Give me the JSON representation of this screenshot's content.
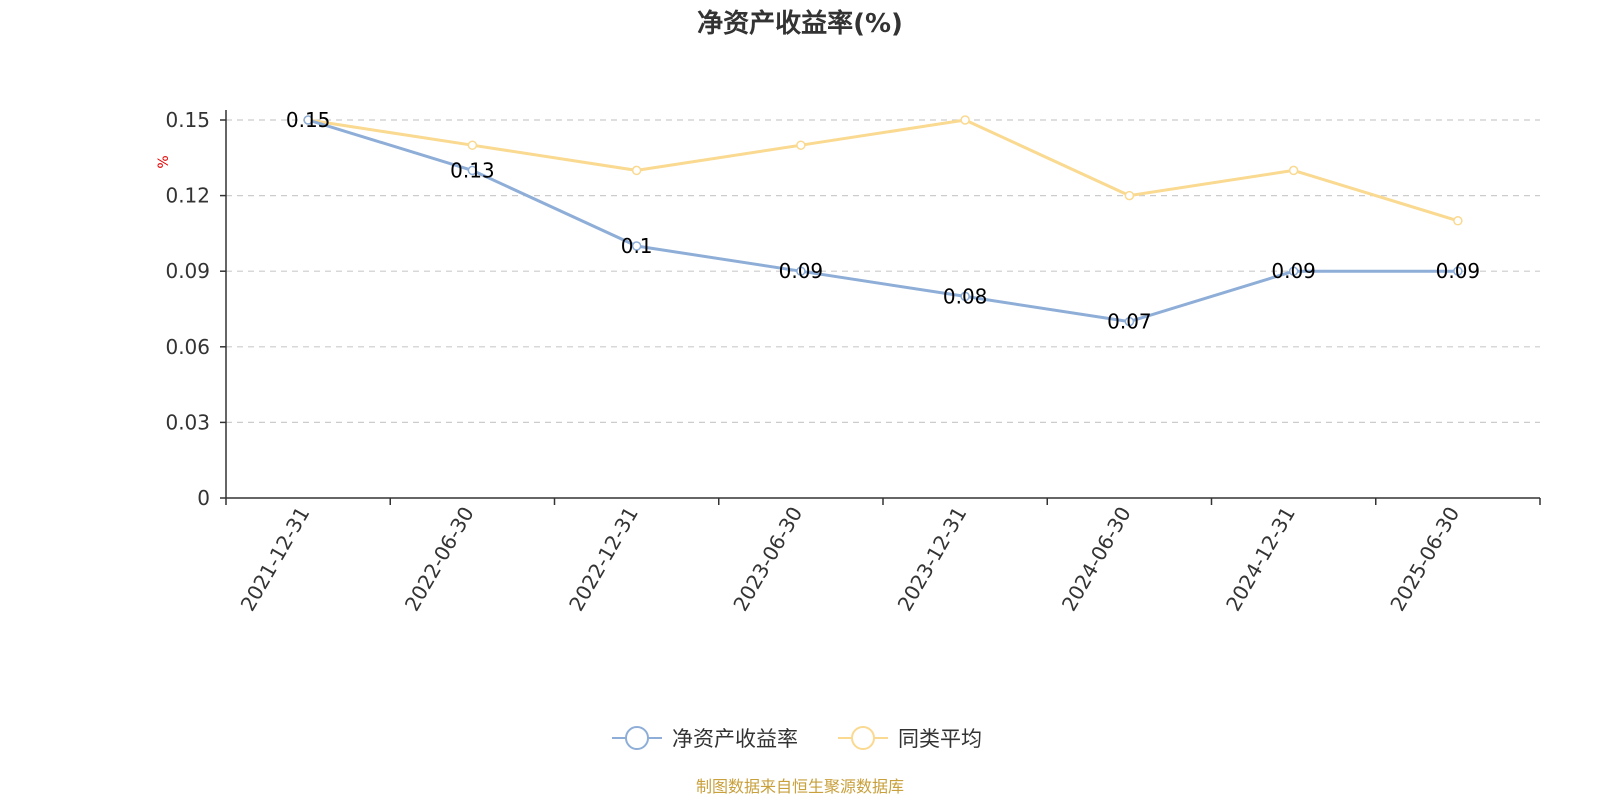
{
  "chart_data": {
    "type": "line",
    "title": "净资产收益率(%)",
    "ylabel": "%",
    "xlabel": "",
    "categories": [
      "2021-12-31",
      "2022-06-30",
      "2022-12-31",
      "2023-06-30",
      "2023-12-31",
      "2024-06-30",
      "2024-12-31",
      "2025-06-30"
    ],
    "series": [
      {
        "name": "净资产收益率",
        "color": "#8eaed8",
        "values": [
          0.15,
          0.13,
          0.1,
          0.09,
          0.08,
          0.07,
          0.09,
          0.09
        ],
        "labels": [
          "0.15",
          "0.13",
          "0.1",
          "0.09",
          "0.08",
          "0.07",
          "0.09",
          "0.09"
        ]
      },
      {
        "name": "同类平均",
        "color": "#fad990",
        "values": [
          0.15,
          0.14,
          0.13,
          0.14,
          0.15,
          0.12,
          0.13,
          0.11
        ]
      }
    ],
    "ylim": [
      0,
      0.15
    ],
    "yticks": [
      "0",
      "0.03",
      "0.06",
      "0.09",
      "0.12",
      "0.15"
    ],
    "grid": true,
    "legend_position": "bottom-center"
  },
  "source_note": "制图数据来自恒生聚源数据库",
  "colors": {
    "axis": "#333333",
    "grid": "#cccccc",
    "ylabel": "#e60000",
    "source": "#c8a03c"
  }
}
